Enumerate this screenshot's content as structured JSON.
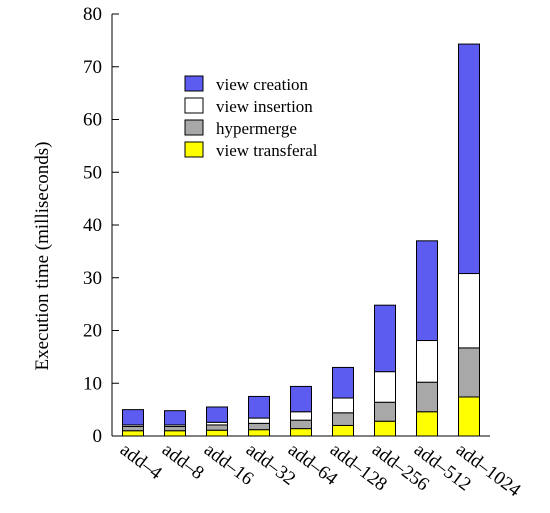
{
  "chart_data": {
    "type": "bar",
    "stacked": true,
    "ylabel": "Execution time (milliseconds)",
    "xlabel": "",
    "ylim": [
      0,
      80
    ],
    "yticks": [
      0,
      10,
      20,
      30,
      40,
      50,
      60,
      70,
      80
    ],
    "categories": [
      "add–4",
      "add–8",
      "add–16",
      "add–32",
      "add–64",
      "add–128",
      "add–256",
      "add–512",
      "add–1024"
    ],
    "legend_position": "upper-left",
    "series": [
      {
        "name": "view transferal",
        "color": "#ffff00",
        "values": [
          1.0,
          1.0,
          1.1,
          1.2,
          1.4,
          2.0,
          2.8,
          4.6,
          7.4
        ]
      },
      {
        "name": "hypermerge",
        "color": "#a8a8a8",
        "values": [
          0.8,
          0.8,
          1.0,
          1.2,
          1.6,
          2.4,
          3.6,
          5.6,
          9.3
        ]
      },
      {
        "name": "view insertion",
        "color": "#ffffff",
        "values": [
          0.3,
          0.3,
          0.5,
          1.0,
          1.6,
          2.8,
          5.8,
          7.9,
          14.1
        ]
      },
      {
        "name": "view creation",
        "color": "#5c5cf0",
        "values": [
          2.9,
          2.7,
          2.9,
          4.1,
          4.8,
          5.8,
          12.6,
          18.9,
          43.5
        ]
      }
    ],
    "legend_order": [
      "view creation",
      "view insertion",
      "hypermerge",
      "view transferal"
    ]
  }
}
